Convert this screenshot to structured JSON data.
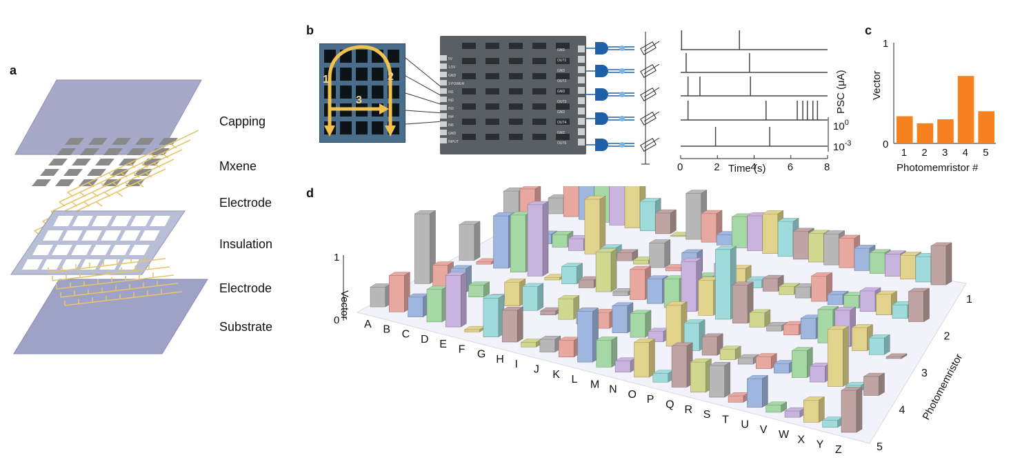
{
  "panels": {
    "a": "a",
    "b": "b",
    "c": "c",
    "d": "d"
  },
  "layers": [
    "Capping",
    "Mxene",
    "Electrode",
    "Insulation",
    "Electrode",
    "Substrate"
  ],
  "photo": {
    "labels": [
      "1",
      "2",
      "3"
    ]
  },
  "board": {
    "left_pins": [
      "5V",
      "1.5V",
      "GND",
      "3 POWER",
      "IN1",
      "IN2",
      "IN3",
      "IN4",
      "IN5",
      "GND",
      "INPUT"
    ],
    "right_pins": [
      "GND",
      "OUT1",
      "GND",
      "OUT2",
      "GND",
      "OUT3",
      "GND",
      "OUT4",
      "GND",
      "OUT5"
    ]
  },
  "traces": {
    "ylabel": "PSC (μA)",
    "xlabel": "Time (s)",
    "x_ticks": [
      "0",
      "2",
      "4",
      "6",
      "8"
    ],
    "scale_ticks": [
      {
        "base": "10",
        "exp": "0"
      },
      {
        "base": "10",
        "exp": "-3"
      }
    ],
    "spikes": [
      [
        0.05,
        3.2
      ],
      [
        0.3,
        3.75
      ],
      [
        0.4,
        1.05,
        3.8
      ],
      [
        0.4,
        4.65,
        6.35,
        6.65,
        6.9,
        7.2,
        7.45
      ],
      [
        1.9,
        4.85
      ]
    ]
  },
  "chart_data": [
    {
      "type": "bar",
      "categories": [
        "1",
        "2",
        "3",
        "4",
        "5"
      ],
      "values": [
        0.27,
        0.2,
        0.24,
        0.67,
        0.32
      ],
      "xlabel": "Photomemristor #",
      "ylabel": "Vector",
      "ylim": [
        0,
        1
      ],
      "y_ticks": [
        "0",
        "1"
      ],
      "color": "#F5821F"
    },
    {
      "type": "bar",
      "x_categories": [
        "A",
        "B",
        "C",
        "D",
        "E",
        "F",
        "G",
        "H",
        "I",
        "J",
        "K",
        "L",
        "M",
        "N",
        "O",
        "P",
        "Q",
        "R",
        "S",
        "T",
        "U",
        "V",
        "W",
        "X",
        "Y",
        "Z"
      ],
      "y_categories": [
        "1",
        "2",
        "3",
        "4",
        "5"
      ],
      "zlabel": "Vector",
      "ylabel": "Photomemristor",
      "zlim": [
        0,
        1
      ],
      "z_ticks": [
        "0",
        "1"
      ],
      "values": [
        [
          0.2,
          0.62,
          0.53,
          0.67,
          0.58,
          0.54,
          0.37,
          0.26,
          0.0,
          0.58,
          0.36,
          0.13,
          0.39,
          0.44,
          0.5,
          0.44,
          0.35,
          0.36,
          0.39,
          0.37,
          0.28,
          0.26,
          0.28,
          0.3,
          0.32,
          0.49
        ],
        [
          0.58,
          0.65,
          0.12,
          0.16,
          0.15,
          0.69,
          0.12,
          0.1,
          0.05,
          0.31,
          0.04,
          0.27,
          0.02,
          0.22,
          0.2,
          0.1,
          0.16,
          0.1,
          0.14,
          0.32,
          0.13,
          0.16,
          0.26,
          0.26,
          0.17,
          0.38
        ],
        [
          0.45,
          0.03,
          0.66,
          0.72,
          0.9,
          0.03,
          0.22,
          0.1,
          0.5,
          0.05,
          0.38,
          0.31,
          0.36,
          0.63,
          0.44,
          0.88,
          0.48,
          0.18,
          0.07,
          0.13,
          0.26,
          0.42,
          0.46,
          0.29,
          0.21,
          0.02
        ],
        [
          0.88,
          0.29,
          0.3,
          0.15,
          0.05,
          0.3,
          0.3,
          0.05,
          0.26,
          0.16,
          0.2,
          0.34,
          0.3,
          0.13,
          0.52,
          0.35,
          0.23,
          0.13,
          0.08,
          0.15,
          0.12,
          0.34,
          0.2,
          0.72,
          0.07,
          0.24
        ],
        [
          0.25,
          0.46,
          0.25,
          0.41,
          0.65,
          0.03,
          0.49,
          0.4,
          0.06,
          0.16,
          0.21,
          0.64,
          0.34,
          0.14,
          0.44,
          0.11,
          0.52,
          0.38,
          0.4,
          0.08,
          0.36,
          0.09,
          0.08,
          0.28,
          0.09,
          0.53
        ]
      ]
    }
  ]
}
